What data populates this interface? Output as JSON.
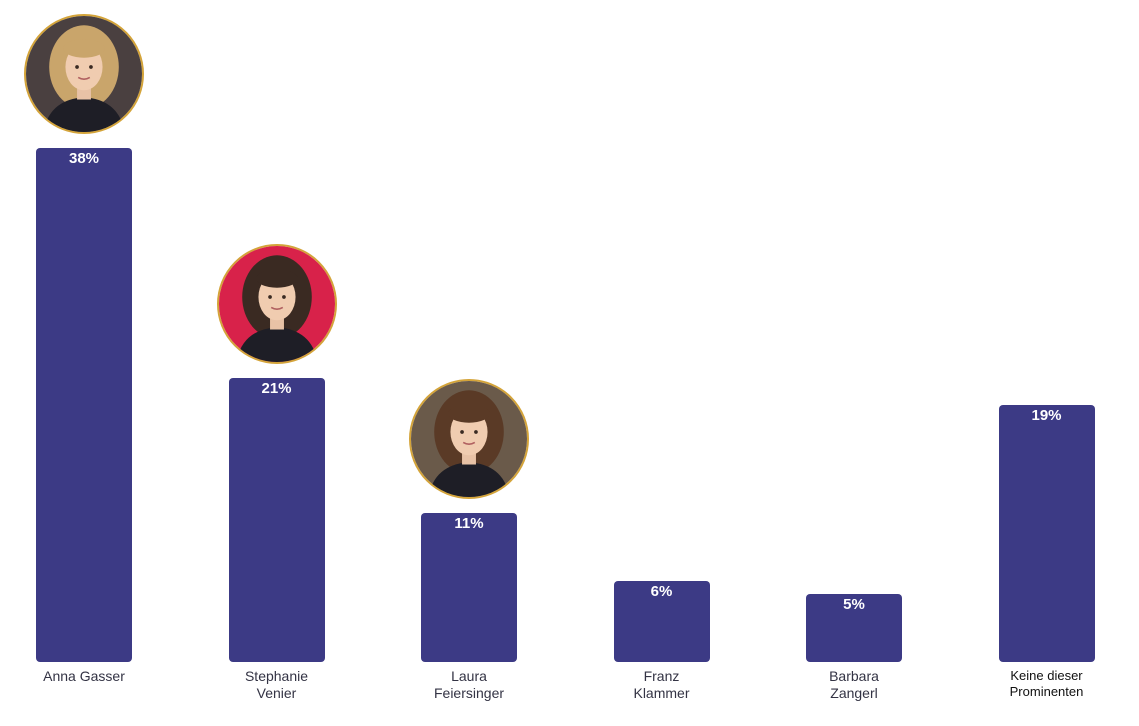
{
  "chart_data": {
    "type": "bar",
    "categories": [
      "Anna Gasser",
      "Stephanie Venier",
      "Laura Feiersinger",
      "Franz Klammer",
      "Barbara Zangerl",
      "Keine dieser Prominenten"
    ],
    "category_lines": [
      [
        "Anna Gasser"
      ],
      [
        "Stephanie",
        "Venier"
      ],
      [
        "Laura",
        "Feiersinger"
      ],
      [
        "Franz",
        "Klammer"
      ],
      [
        "Barbara",
        "Zangerl"
      ],
      [
        "Keine dieser",
        "Prominenten"
      ]
    ],
    "values": [
      38,
      21,
      11,
      6,
      5,
      19
    ],
    "value_labels": [
      "38%",
      "21%",
      "11%",
      "6%",
      "5%",
      "19%"
    ],
    "unit": "%",
    "ylim": [
      0,
      38
    ],
    "grid": false,
    "bar_color": "#3c3a85",
    "avatars": [
      {
        "category": "Anna Gasser",
        "icon": "portrait-photo",
        "hair": "#c9a56b",
        "bg": "#4a4040"
      },
      {
        "category": "Stephanie Venier",
        "icon": "portrait-photo",
        "hair": "#3a2a22",
        "bg": "#d8224a"
      },
      {
        "category": "Laura Feiersinger",
        "icon": "portrait-photo",
        "hair": "#5a3a26",
        "bg": "#6a5a4a"
      }
    ]
  }
}
